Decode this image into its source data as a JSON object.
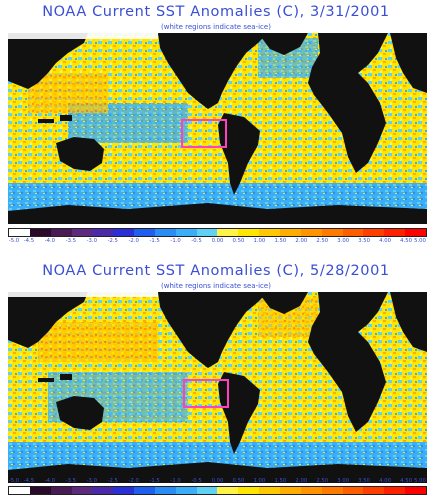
{
  "panels": [
    {
      "title": "NOAA Current SST Anomalies (C), 3/31/2001",
      "subtitle": "(white regions indicate sea-ice)"
    },
    {
      "title": "NOAA Current SST Anomalies (C), 5/28/2001",
      "subtitle": "(white regions indicate sea-ice)"
    }
  ],
  "colorbar": {
    "ticks": [
      "-5.0",
      "-4.5",
      "-4.0",
      "-3.5",
      "-3.0",
      "-2.5",
      "-2.0",
      "-1.5",
      "-1.0",
      "-0.5",
      "0.00",
      "0.50",
      "1.00",
      "1.50",
      "2.00",
      "2.50",
      "3.00",
      "3.50",
      "4.00",
      "4.50",
      "5.00"
    ],
    "colors": [
      "#ffffff",
      "#2a0a2a",
      "#4a1a55",
      "#5e2a80",
      "#4a2aa8",
      "#2a30d8",
      "#1f5ff0",
      "#2a8cf5",
      "#3aaef8",
      "#60d0f5",
      "#fff34a",
      "#ffe600",
      "#ffc800",
      "#ffae00",
      "#ff9400",
      "#ff7a00",
      "#ff5e00",
      "#ff3e00",
      "#ff2000",
      "#ff0000"
    ]
  },
  "highlight_box_color": "#ff40c0"
}
